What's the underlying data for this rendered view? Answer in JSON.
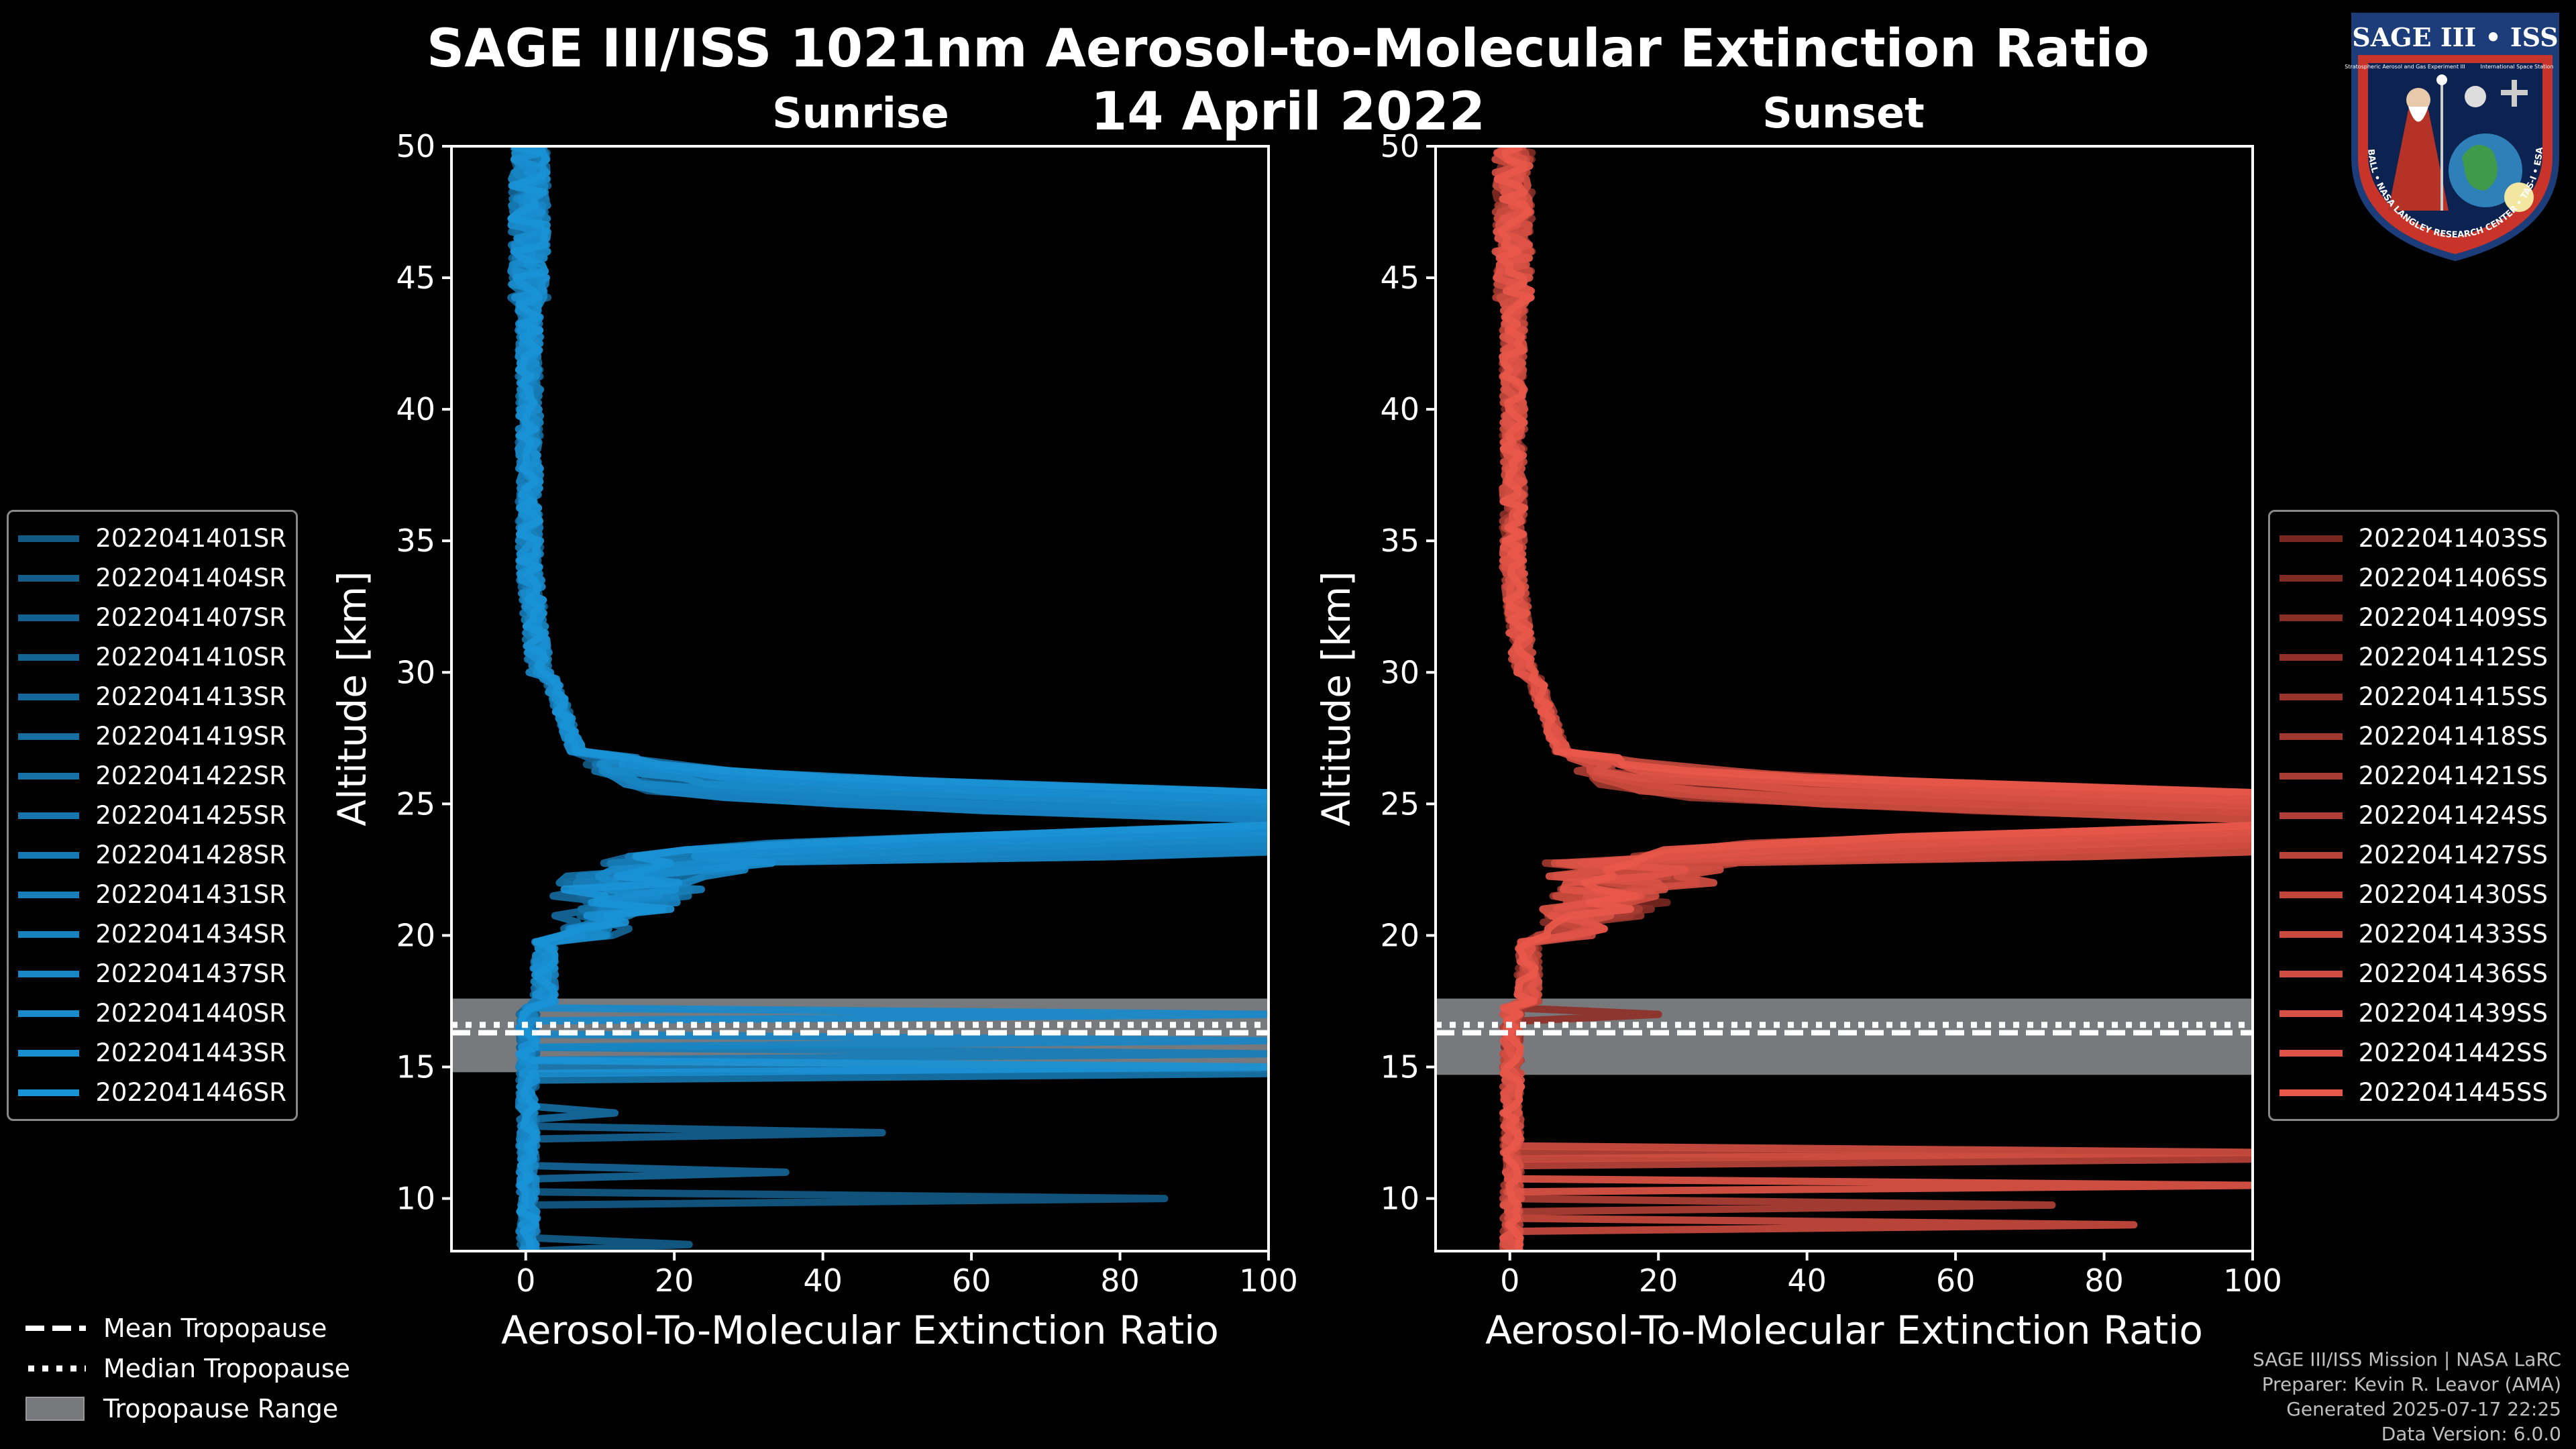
{
  "title": "SAGE III/ISS 1021nm Aerosol-to-Molecular Extinction Ratio",
  "date": "14 April 2022",
  "logo": {
    "top_text": "SAGE III • ISS",
    "left_text": "Stratospheric Aerosol and Gas Experiment III",
    "right_text": "International Space Station",
    "ring_text": "BALL • NASA LANGLEY RESEARCH CENTER • TAS-I • ESA"
  },
  "footer": [
    "SAGE III/ISS Mission | NASA LaRC",
    "Preparer: Kevin R. Leavor (AMA)",
    "Generated 2025-07-17 22:25",
    "Data Version: 6.0.0"
  ],
  "bottom_legend": {
    "mean": "Mean Tropopause",
    "median": "Median Tropopause",
    "range": "Tropopause Range"
  },
  "chart_data": [
    {
      "type": "line",
      "title": "Sunrise",
      "xlabel": "Aerosol-To-Molecular Extinction Ratio",
      "ylabel": "Altitude [km]",
      "xlim": [
        -10,
        100
      ],
      "ylim": [
        8,
        50
      ],
      "xticks": [
        "0",
        "20",
        "40",
        "60",
        "80",
        "100"
      ],
      "yticks": [
        "10",
        "15",
        "20",
        "25",
        "30",
        "35",
        "40",
        "45",
        "50"
      ],
      "tropopause": {
        "mean": 16.3,
        "median": 16.6,
        "range": [
          14.8,
          17.6
        ]
      },
      "color_dark": "#0d3a58",
      "color_light": "#1a92d6",
      "series": [
        {
          "name": "2022041401SR",
          "spike": 86,
          "low": 10.0
        },
        {
          "name": "2022041404SR",
          "spike": 22,
          "low": 8.3
        },
        {
          "name": "2022041407SR",
          "spike": 48,
          "low": 12.5
        },
        {
          "name": "2022041410SR",
          "spike": 35,
          "low": 11.0
        },
        {
          "name": "2022041413SR",
          "spike": 0,
          "low": 0
        },
        {
          "name": "2022041419SR",
          "spike": 12,
          "low": 13.2
        },
        {
          "name": "2022041422SR",
          "spike": 0,
          "low": 0
        },
        {
          "name": "2022041425SR",
          "spike": 100,
          "low": 14.8
        },
        {
          "name": "2022041428SR",
          "spike": 0,
          "low": 0
        },
        {
          "name": "2022041431SR",
          "spike": 100,
          "low": 15.5
        },
        {
          "name": "2022041434SR",
          "spike": 0,
          "low": 0
        },
        {
          "name": "2022041437SR",
          "spike": 100,
          "low": 16.0
        },
        {
          "name": "2022041440SR",
          "spike": 100,
          "low": 17.0
        },
        {
          "name": "2022041443SR",
          "spike": 0,
          "low": 0
        },
        {
          "name": "2022041446SR",
          "spike": 100,
          "low": 15.1
        }
      ]
    },
    {
      "type": "line",
      "title": "Sunset",
      "xlabel": "Aerosol-To-Molecular Extinction Ratio",
      "ylabel": "Altitude [km]",
      "xlim": [
        -10,
        100
      ],
      "ylim": [
        8,
        50
      ],
      "xticks": [
        "0",
        "20",
        "40",
        "60",
        "80",
        "100"
      ],
      "yticks": [
        "10",
        "15",
        "20",
        "25",
        "30",
        "35",
        "40",
        "45",
        "50"
      ],
      "tropopause": {
        "mean": 16.3,
        "median": 16.6,
        "range": [
          14.7,
          17.6
        ]
      },
      "color_dark": "#3a0c09",
      "color_light": "#e8584a",
      "series": [
        {
          "name": "2022041403SS",
          "spike": 0,
          "low": 0
        },
        {
          "name": "2022041406SS",
          "spike": 0,
          "low": 0
        },
        {
          "name": "2022041409SS",
          "spike": 0,
          "low": 0
        },
        {
          "name": "2022041412SS",
          "spike": 20,
          "low": 17.0
        },
        {
          "name": "2022041415SS",
          "spike": 0,
          "low": 0
        },
        {
          "name": "2022041418SS",
          "spike": 0,
          "low": 0
        },
        {
          "name": "2022041421SS",
          "spike": 0,
          "low": 0
        },
        {
          "name": "2022041424SS",
          "spike": 73,
          "low": 9.8
        },
        {
          "name": "2022041427SS",
          "spike": 100,
          "low": 11.5
        },
        {
          "name": "2022041430SS",
          "spike": 0,
          "low": 0
        },
        {
          "name": "2022041433SS",
          "spike": 84,
          "low": 9.0
        },
        {
          "name": "2022041436SS",
          "spike": 100,
          "low": 11.8
        },
        {
          "name": "2022041439SS",
          "spike": 0,
          "low": 0
        },
        {
          "name": "2022041442SS",
          "spike": 100,
          "low": 10.4
        },
        {
          "name": "2022041445SS",
          "spike": 0,
          "low": 0
        }
      ]
    }
  ]
}
